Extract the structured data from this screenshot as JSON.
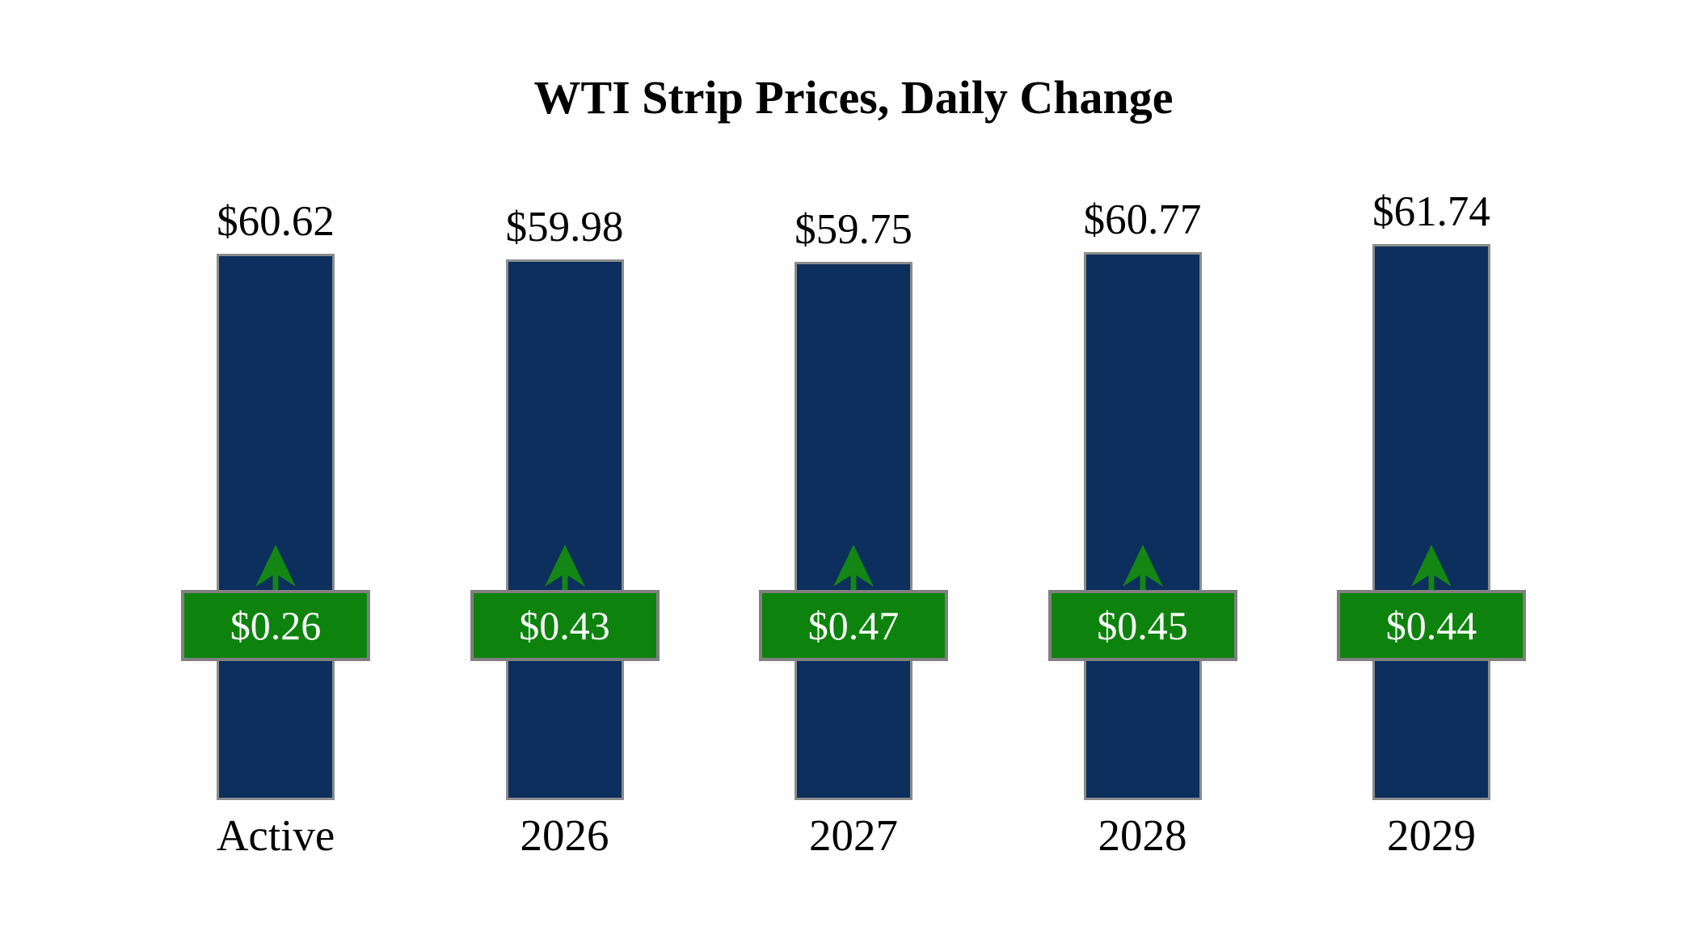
{
  "chart_data": {
    "type": "bar",
    "title": "WTI Strip Prices, Daily Change",
    "categories": [
      "Active",
      "2026",
      "2027",
      "2028",
      "2029"
    ],
    "series": [
      {
        "name": "Strip Price",
        "values": [
          60.62,
          59.98,
          59.75,
          60.77,
          61.74
        ],
        "labels": [
          "$60.62",
          "$59.98",
          "$59.75",
          "$60.77",
          "$61.74"
        ]
      },
      {
        "name": "Daily Change",
        "values": [
          0.26,
          0.43,
          0.47,
          0.45,
          0.44
        ],
        "labels": [
          "$0.26",
          "$0.43",
          "$0.47",
          "$0.45",
          "$0.44"
        ]
      }
    ],
    "ylim": [
      0,
      68
    ],
    "grid": false,
    "legend": false,
    "axes_visible": false,
    "change_direction": "up",
    "icons": {
      "change_indicator": "up-arrow-icon"
    },
    "colors": {
      "background": "#ffffff",
      "bar_fill": "#0c2f5d",
      "bar_border": "#8c8c8c",
      "change_box_fill": "#0d830d",
      "change_box_border": "#808080",
      "arrow": "#148614",
      "change_text": "#ffffff",
      "label_text": "#000000"
    }
  }
}
